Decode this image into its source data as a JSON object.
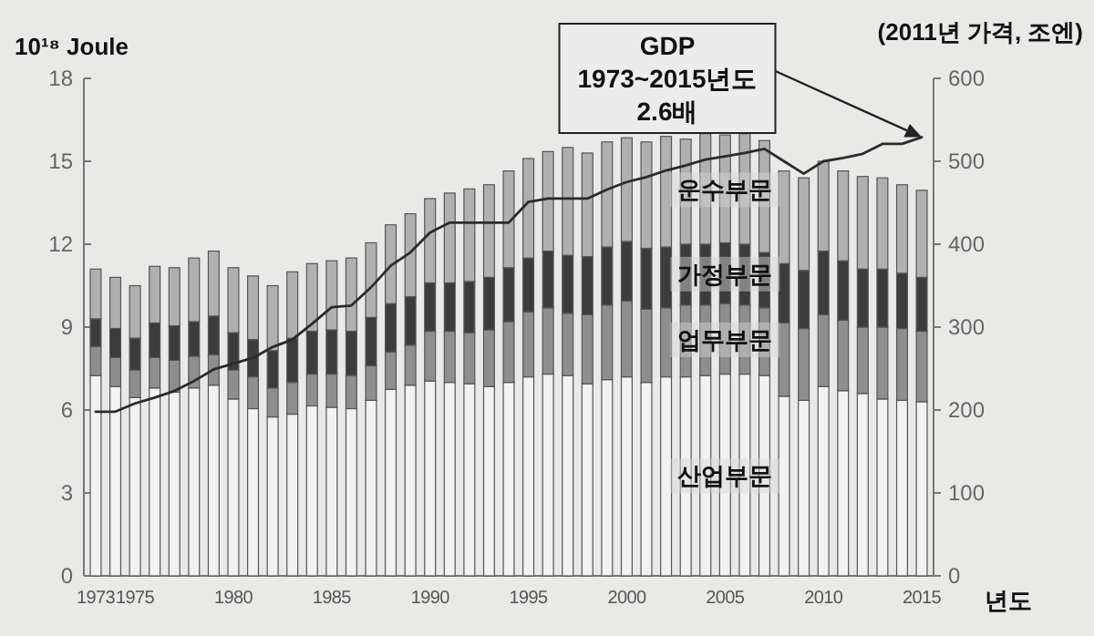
{
  "chart_data": {
    "type": "bar",
    "stacked": true,
    "ylabel": "10¹⁸ Joule",
    "y2label": "(2011년 가격, 조엔)",
    "xlabel": "년도",
    "annotations": [
      "GDP\n1973~2015년도\n2.6배"
    ],
    "x": [
      1973,
      1974,
      1975,
      1976,
      1977,
      1978,
      1979,
      1980,
      1981,
      1982,
      1983,
      1984,
      1985,
      1986,
      1987,
      1988,
      1989,
      1990,
      1991,
      1992,
      1993,
      1994,
      1995,
      1996,
      1997,
      1998,
      1999,
      2000,
      2001,
      2002,
      2003,
      2004,
      2005,
      2006,
      2007,
      2008,
      2009,
      2010,
      2011,
      2012,
      2013,
      2014,
      2015
    ],
    "xlim": [
      1972.4,
      2015.6
    ],
    "xticks": [
      1973,
      1975,
      1980,
      1985,
      1990,
      1995,
      2000,
      2005,
      2010,
      2015
    ],
    "ylim": [
      0,
      18
    ],
    "yticks": [
      0,
      3,
      6,
      9,
      12,
      15,
      18
    ],
    "y2lim": [
      0,
      600
    ],
    "y2ticks": [
      0,
      100,
      200,
      300,
      400,
      500,
      600
    ],
    "series": [
      {
        "name": "산업부문",
        "color": "#f2f2f2",
        "values": [
          7.25,
          6.85,
          6.45,
          6.8,
          6.65,
          6.8,
          6.9,
          6.4,
          6.05,
          5.75,
          5.85,
          6.15,
          6.1,
          6.05,
          6.35,
          6.75,
          6.9,
          7.05,
          7.0,
          6.95,
          6.85,
          7.0,
          7.2,
          7.3,
          7.25,
          6.95,
          7.1,
          7.2,
          7.0,
          7.2,
          7.2,
          7.25,
          7.3,
          7.3,
          7.25,
          6.5,
          6.35,
          6.85,
          6.7,
          6.6,
          6.4,
          6.35,
          6.3
        ]
      },
      {
        "name": "업무부문",
        "color": "#8e8e8e",
        "values": [
          1.05,
          1.05,
          1.0,
          1.1,
          1.15,
          1.15,
          1.1,
          1.05,
          1.15,
          1.05,
          1.15,
          1.15,
          1.2,
          1.2,
          1.25,
          1.35,
          1.45,
          1.8,
          1.85,
          1.85,
          2.05,
          2.2,
          2.35,
          2.4,
          2.25,
          2.5,
          2.7,
          2.75,
          2.65,
          2.5,
          2.6,
          2.55,
          2.55,
          2.5,
          2.45,
          2.65,
          2.6,
          2.6,
          2.55,
          2.4,
          2.6,
          2.6,
          2.55
        ]
      },
      {
        "name": "가정부문",
        "color": "#3c3c3c",
        "values": [
          1.0,
          1.05,
          1.15,
          1.25,
          1.25,
          1.25,
          1.4,
          1.35,
          1.35,
          1.35,
          1.6,
          1.55,
          1.6,
          1.6,
          1.75,
          1.75,
          1.75,
          1.75,
          1.75,
          1.85,
          1.9,
          1.95,
          1.95,
          2.05,
          2.1,
          2.1,
          2.1,
          2.15,
          2.2,
          2.2,
          2.2,
          2.2,
          2.2,
          2.2,
          2.0,
          2.15,
          2.1,
          2.3,
          2.15,
          2.1,
          2.1,
          2.0,
          1.95
        ]
      },
      {
        "name": "운수부문",
        "color": "#b0b0b0",
        "values": [
          1.8,
          1.85,
          1.9,
          2.05,
          2.1,
          2.3,
          2.35,
          2.35,
          2.3,
          2.35,
          2.4,
          2.45,
          2.5,
          2.65,
          2.7,
          2.85,
          3.0,
          3.05,
          3.25,
          3.35,
          3.35,
          3.5,
          3.6,
          3.6,
          3.9,
          3.75,
          3.8,
          3.75,
          3.85,
          4.0,
          3.8,
          4.0,
          3.9,
          4.0,
          4.05,
          3.35,
          3.35,
          3.25,
          3.25,
          3.35,
          3.3,
          3.2,
          3.15
        ]
      },
      {
        "type": "line",
        "axis": "y2",
        "color": "#2b2b2b",
        "values": [
          198,
          198,
          208,
          215,
          223,
          235,
          249,
          256,
          263,
          276,
          285,
          304,
          324,
          326,
          348,
          374,
          390,
          414,
          426,
          426,
          426,
          426,
          451,
          455,
          455,
          455,
          466,
          475,
          481,
          489,
          495,
          502,
          506,
          510,
          515,
          500,
          485,
          500,
          504,
          509,
          521,
          521,
          529
        ]
      }
    ]
  }
}
